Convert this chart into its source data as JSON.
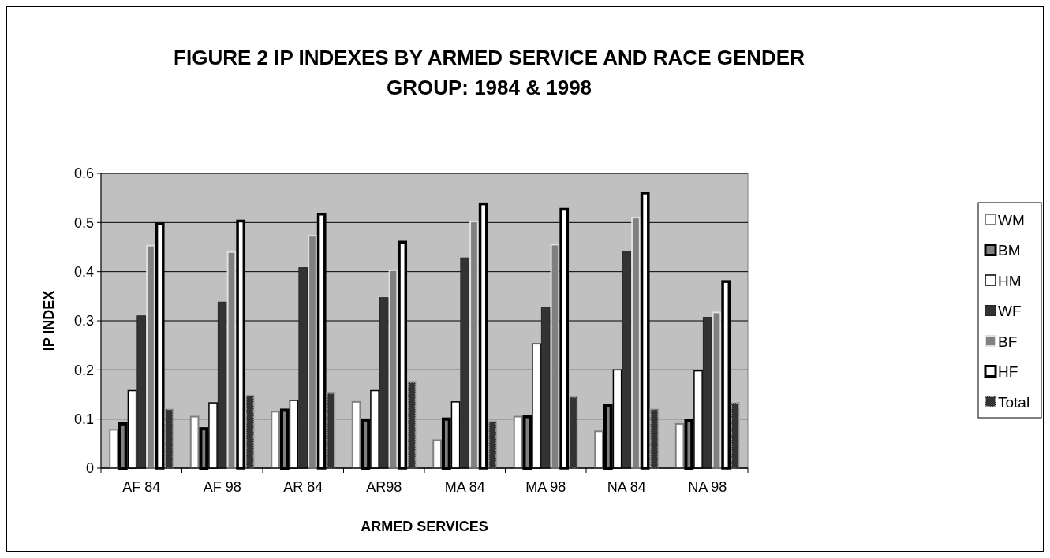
{
  "chart_data": {
    "type": "bar",
    "title": "FIGURE 2 IP INDEXES BY ARMED SERVICE AND RACE GENDER GROUP: 1984 & 1998",
    "xlabel": "ARMED SERVICES",
    "ylabel": "IP INDEX",
    "categories": [
      "AF 84",
      "AF 98",
      "AR 84",
      "AR98",
      "MA 84",
      "MA 98",
      "NA 84",
      "NA 98"
    ],
    "series": [
      {
        "name": "WM",
        "color": "#ffffff",
        "values": [
          0.078,
          0.105,
          0.115,
          0.135,
          0.057,
          0.105,
          0.075,
          0.09
        ]
      },
      {
        "name": "BM",
        "color": "#808080",
        "values": [
          0.09,
          0.08,
          0.118,
          0.098,
          0.1,
          0.105,
          0.128,
          0.097
        ]
      },
      {
        "name": "HM",
        "color": "#ffffff",
        "values": [
          0.158,
          0.133,
          0.138,
          0.158,
          0.135,
          0.253,
          0.2,
          0.198
        ]
      },
      {
        "name": "WF",
        "color": "#333333",
        "values": [
          0.31,
          0.338,
          0.408,
          0.347,
          0.428,
          0.327,
          0.442,
          0.307
        ]
      },
      {
        "name": "BF",
        "color": "#808080",
        "values": [
          0.453,
          0.44,
          0.473,
          0.403,
          0.502,
          0.455,
          0.51,
          0.317
        ]
      },
      {
        "name": "HF",
        "color": "#ffffff",
        "values": [
          0.497,
          0.503,
          0.517,
          0.46,
          0.538,
          0.527,
          0.56,
          0.38
        ]
      },
      {
        "name": "Total",
        "color": "#333333",
        "values": [
          0.12,
          0.148,
          0.153,
          0.175,
          0.095,
          0.145,
          0.12,
          0.133
        ]
      }
    ],
    "ylim": [
      0,
      0.6
    ],
    "yticks": [
      0,
      0.1,
      0.2,
      0.3,
      0.4,
      0.5,
      0.6
    ],
    "grid": "y",
    "legend": "right"
  }
}
